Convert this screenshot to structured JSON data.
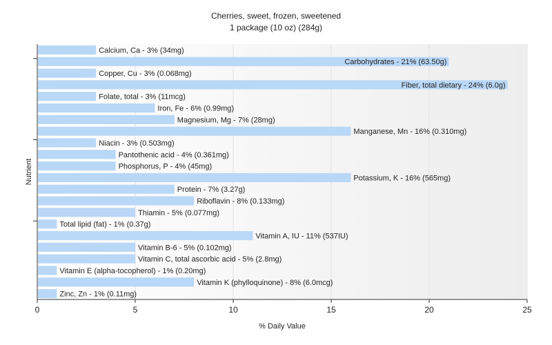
{
  "chart_data": {
    "type": "bar",
    "orientation": "horizontal",
    "title": "Cherries, sweet, frozen, sweetened",
    "subtitle": "1 package (10 oz) (284g)",
    "xlabel": "% Daily Value",
    "ylabel": "Nutrient",
    "xlim": [
      0,
      25
    ],
    "xticks": [
      0,
      5,
      10,
      15,
      20,
      25
    ],
    "grid": true,
    "bar_color": "#b9d7f7",
    "categories": [
      "Calcium, Ca",
      "Carbohydrates",
      "Copper, Cu",
      "Fiber, total dietary",
      "Folate, total",
      "Iron, Fe",
      "Magnesium, Mg",
      "Manganese, Mn",
      "Niacin",
      "Pantothenic acid",
      "Phosphorus, P",
      "Potassium, K",
      "Protein",
      "Riboflavin",
      "Thiamin",
      "Total lipid (fat)",
      "Vitamin A, IU",
      "Vitamin B-6",
      "Vitamin C, total ascorbic acid",
      "Vitamin E (alpha-tocopherol)",
      "Vitamin K (phylloquinone)",
      "Zinc, Zn"
    ],
    "values": [
      3,
      21,
      3,
      24,
      3,
      6,
      7,
      16,
      3,
      4,
      4,
      16,
      7,
      8,
      5,
      1,
      11,
      5,
      5,
      1,
      8,
      1
    ],
    "labels": [
      "Calcium, Ca - 3% (34mg)",
      "Carbohydrates - 21% (63.50g)",
      "Copper, Cu - 3% (0.068mg)",
      "Fiber, total dietary - 24% (6.0g)",
      "Folate, total - 3% (11mcg)",
      "Iron, Fe - 6% (0.99mg)",
      "Magnesium, Mg - 7% (28mg)",
      "Manganese, Mn - 16% (0.310mg)",
      "Niacin - 3% (0.503mg)",
      "Pantothenic acid - 4% (0.361mg)",
      "Phosphorus, P - 4% (45mg)",
      "Potassium, K - 16% (565mg)",
      "Protein - 7% (3.27g)",
      "Riboflavin - 8% (0.133mg)",
      "Thiamin - 5% (0.077mg)",
      "Total lipid (fat) - 1% (0.37g)",
      "Vitamin A, IU - 11% (537IU)",
      "Vitamin B-6 - 5% (0.102mg)",
      "Vitamin C, total ascorbic acid - 5% (2.8mg)",
      "Vitamin E (alpha-tocopherol) - 1% (0.20mg)",
      "Vitamin K (phylloquinone) - 8% (6.0mcg)",
      "Zinc, Zn - 1% (0.11mg)"
    ]
  }
}
